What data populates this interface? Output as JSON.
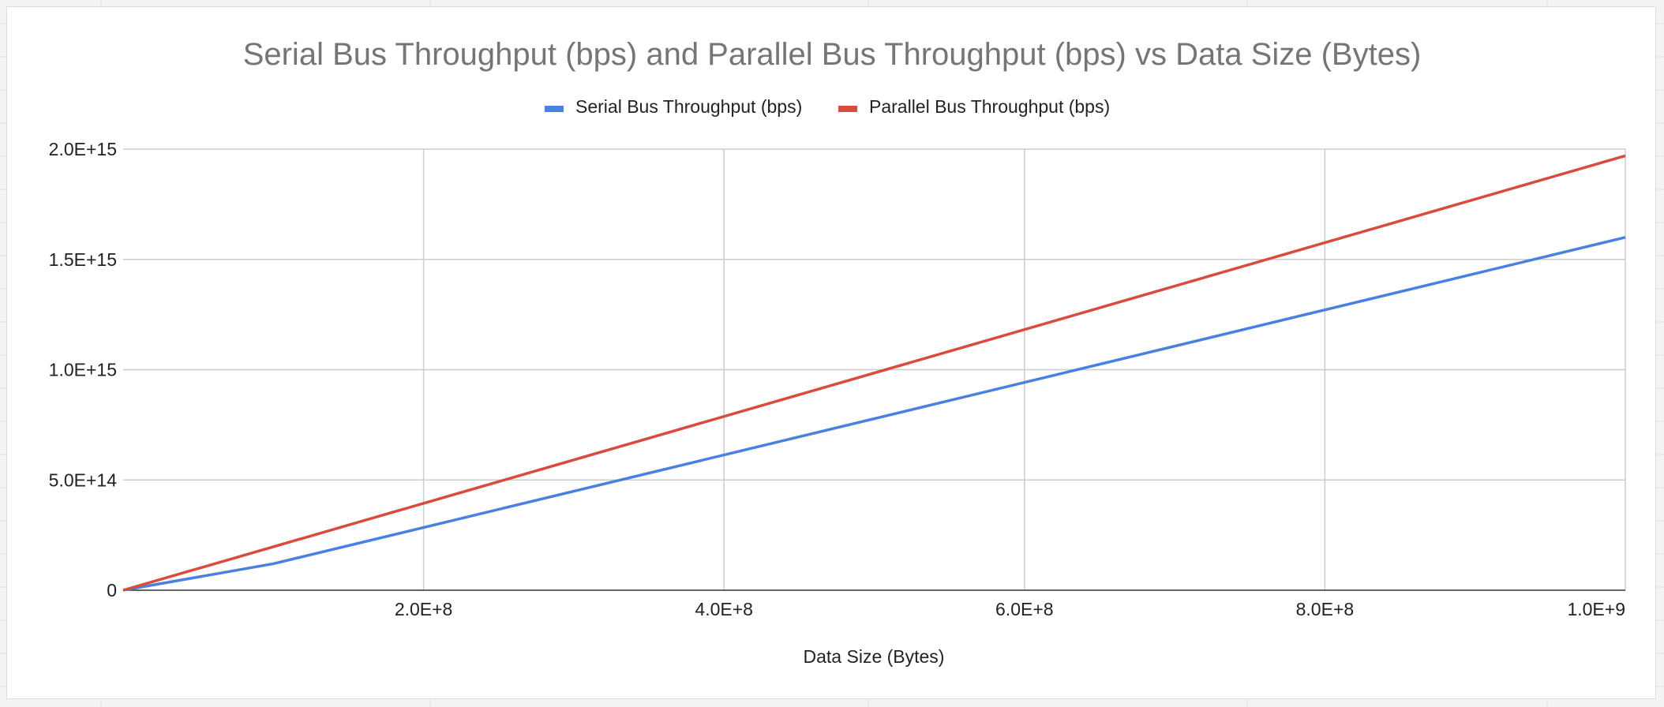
{
  "colors": {
    "background": "#ffffff",
    "grid": "#cccccc",
    "axis": "#333333",
    "title": "#757575",
    "text": "#222222",
    "serial": "#4a80e0",
    "parallel": "#d84c3e"
  },
  "chart_data": {
    "type": "line",
    "title": "Serial Bus Throughput (bps) and Parallel Bus Throughput (bps) vs Data Size (Bytes)",
    "xlabel": "Data Size (Bytes)",
    "ylabel": "",
    "xlim": [
      0,
      1000000000
    ],
    "ylim": [
      0,
      2000000000000000
    ],
    "grid": true,
    "legend_position": "top",
    "x_ticks": [
      {
        "value": 200000000,
        "label": "2.0E+8"
      },
      {
        "value": 400000000,
        "label": "4.0E+8"
      },
      {
        "value": 600000000,
        "label": "6.0E+8"
      },
      {
        "value": 800000000,
        "label": "8.0E+8"
      },
      {
        "value": 1000000000,
        "label": "1.0E+9"
      }
    ],
    "y_ticks": [
      {
        "value": 0,
        "label": "0"
      },
      {
        "value": 500000000000000,
        "label": "5.0E+14"
      },
      {
        "value": 1000000000000000,
        "label": "1.0E+15"
      },
      {
        "value": 1500000000000000,
        "label": "1.5E+15"
      },
      {
        "value": 2000000000000000,
        "label": "2.0E+15"
      }
    ],
    "x": [
      0,
      100000000,
      1000000000
    ],
    "series": [
      {
        "name": "Serial Bus Throughput (bps)",
        "color": "#4a80e0",
        "values": [
          0,
          120000000000000,
          1600000000000000
        ]
      },
      {
        "name": "Parallel Bus Throughput (bps)",
        "color": "#d84c3e",
        "values": [
          0,
          197000000000000,
          1970000000000000
        ]
      }
    ]
  }
}
